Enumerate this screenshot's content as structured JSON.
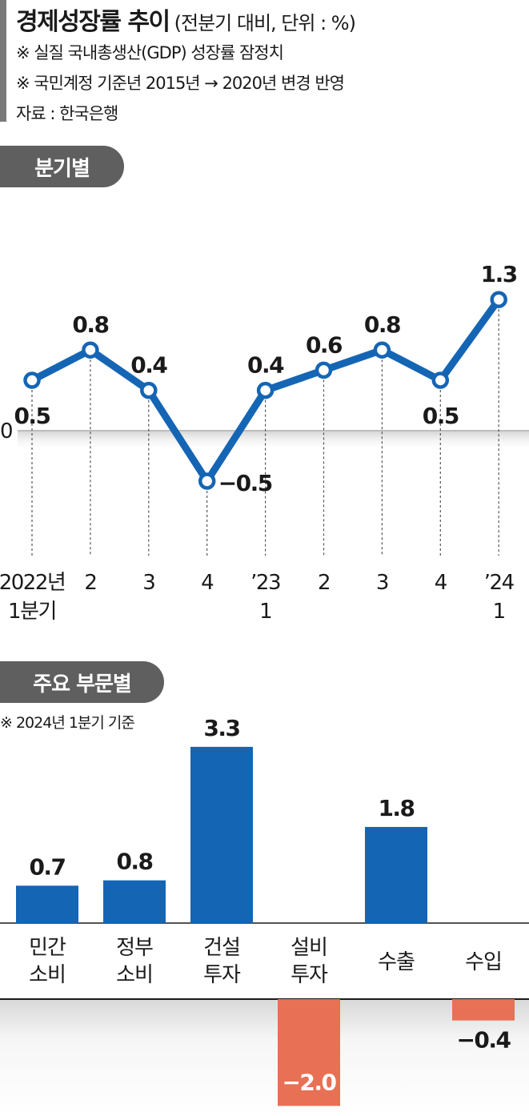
{
  "header": {
    "title": "경제성장률 추이",
    "subtitle": "(전분기 대비, 단위 : %)",
    "notes": [
      "※ 실질 국내총생산(GDP) 성장률 잠정치",
      "※ 국민계정 기준년 2015년 → 2020년 변경 반영",
      "자료 : 한국은행"
    ]
  },
  "quarterly": {
    "section_label": "분기별",
    "zero_label": "0"
  },
  "sectors": {
    "section_label": "주요 부문별",
    "basis_note": "※ 2024년 1분기 기준"
  },
  "colors": {
    "line": "#1565b5",
    "positive_bar": "#1565b5",
    "negative_bar": "#e87055",
    "pill": "#5f5f5f"
  },
  "chart_data": [
    {
      "type": "line",
      "x": [
        [
          "2022년",
          "1분기"
        ],
        [
          "2"
        ],
        [
          "3"
        ],
        [
          "4"
        ],
        [
          "’23",
          "1"
        ],
        [
          "2"
        ],
        [
          "3"
        ],
        [
          "4"
        ],
        [
          "’24",
          "1"
        ]
      ],
      "values": [
        0.5,
        0.8,
        0.4,
        -0.5,
        0.4,
        0.6,
        0.8,
        0.5,
        1.3
      ],
      "labels": [
        "0.5",
        "0.8",
        "0.4",
        "−0.5",
        "0.4",
        "0.6",
        "0.8",
        "0.5",
        "1.3"
      ],
      "label_positions": [
        "below",
        "above",
        "above",
        "right",
        "above",
        "above",
        "above",
        "below",
        "above"
      ]
    },
    {
      "type": "bar",
      "categories": [
        [
          "민간",
          "소비"
        ],
        [
          "정부",
          "소비"
        ],
        [
          "건설",
          "투자"
        ],
        [
          "설비",
          "투자"
        ],
        [
          "수출"
        ],
        [
          "수입"
        ]
      ],
      "values": [
        0.7,
        0.8,
        3.3,
        -2.0,
        1.8,
        -0.4
      ],
      "labels": [
        "0.7",
        "0.8",
        "3.3",
        "−2.0",
        "1.8",
        "−0.4"
      ]
    }
  ]
}
